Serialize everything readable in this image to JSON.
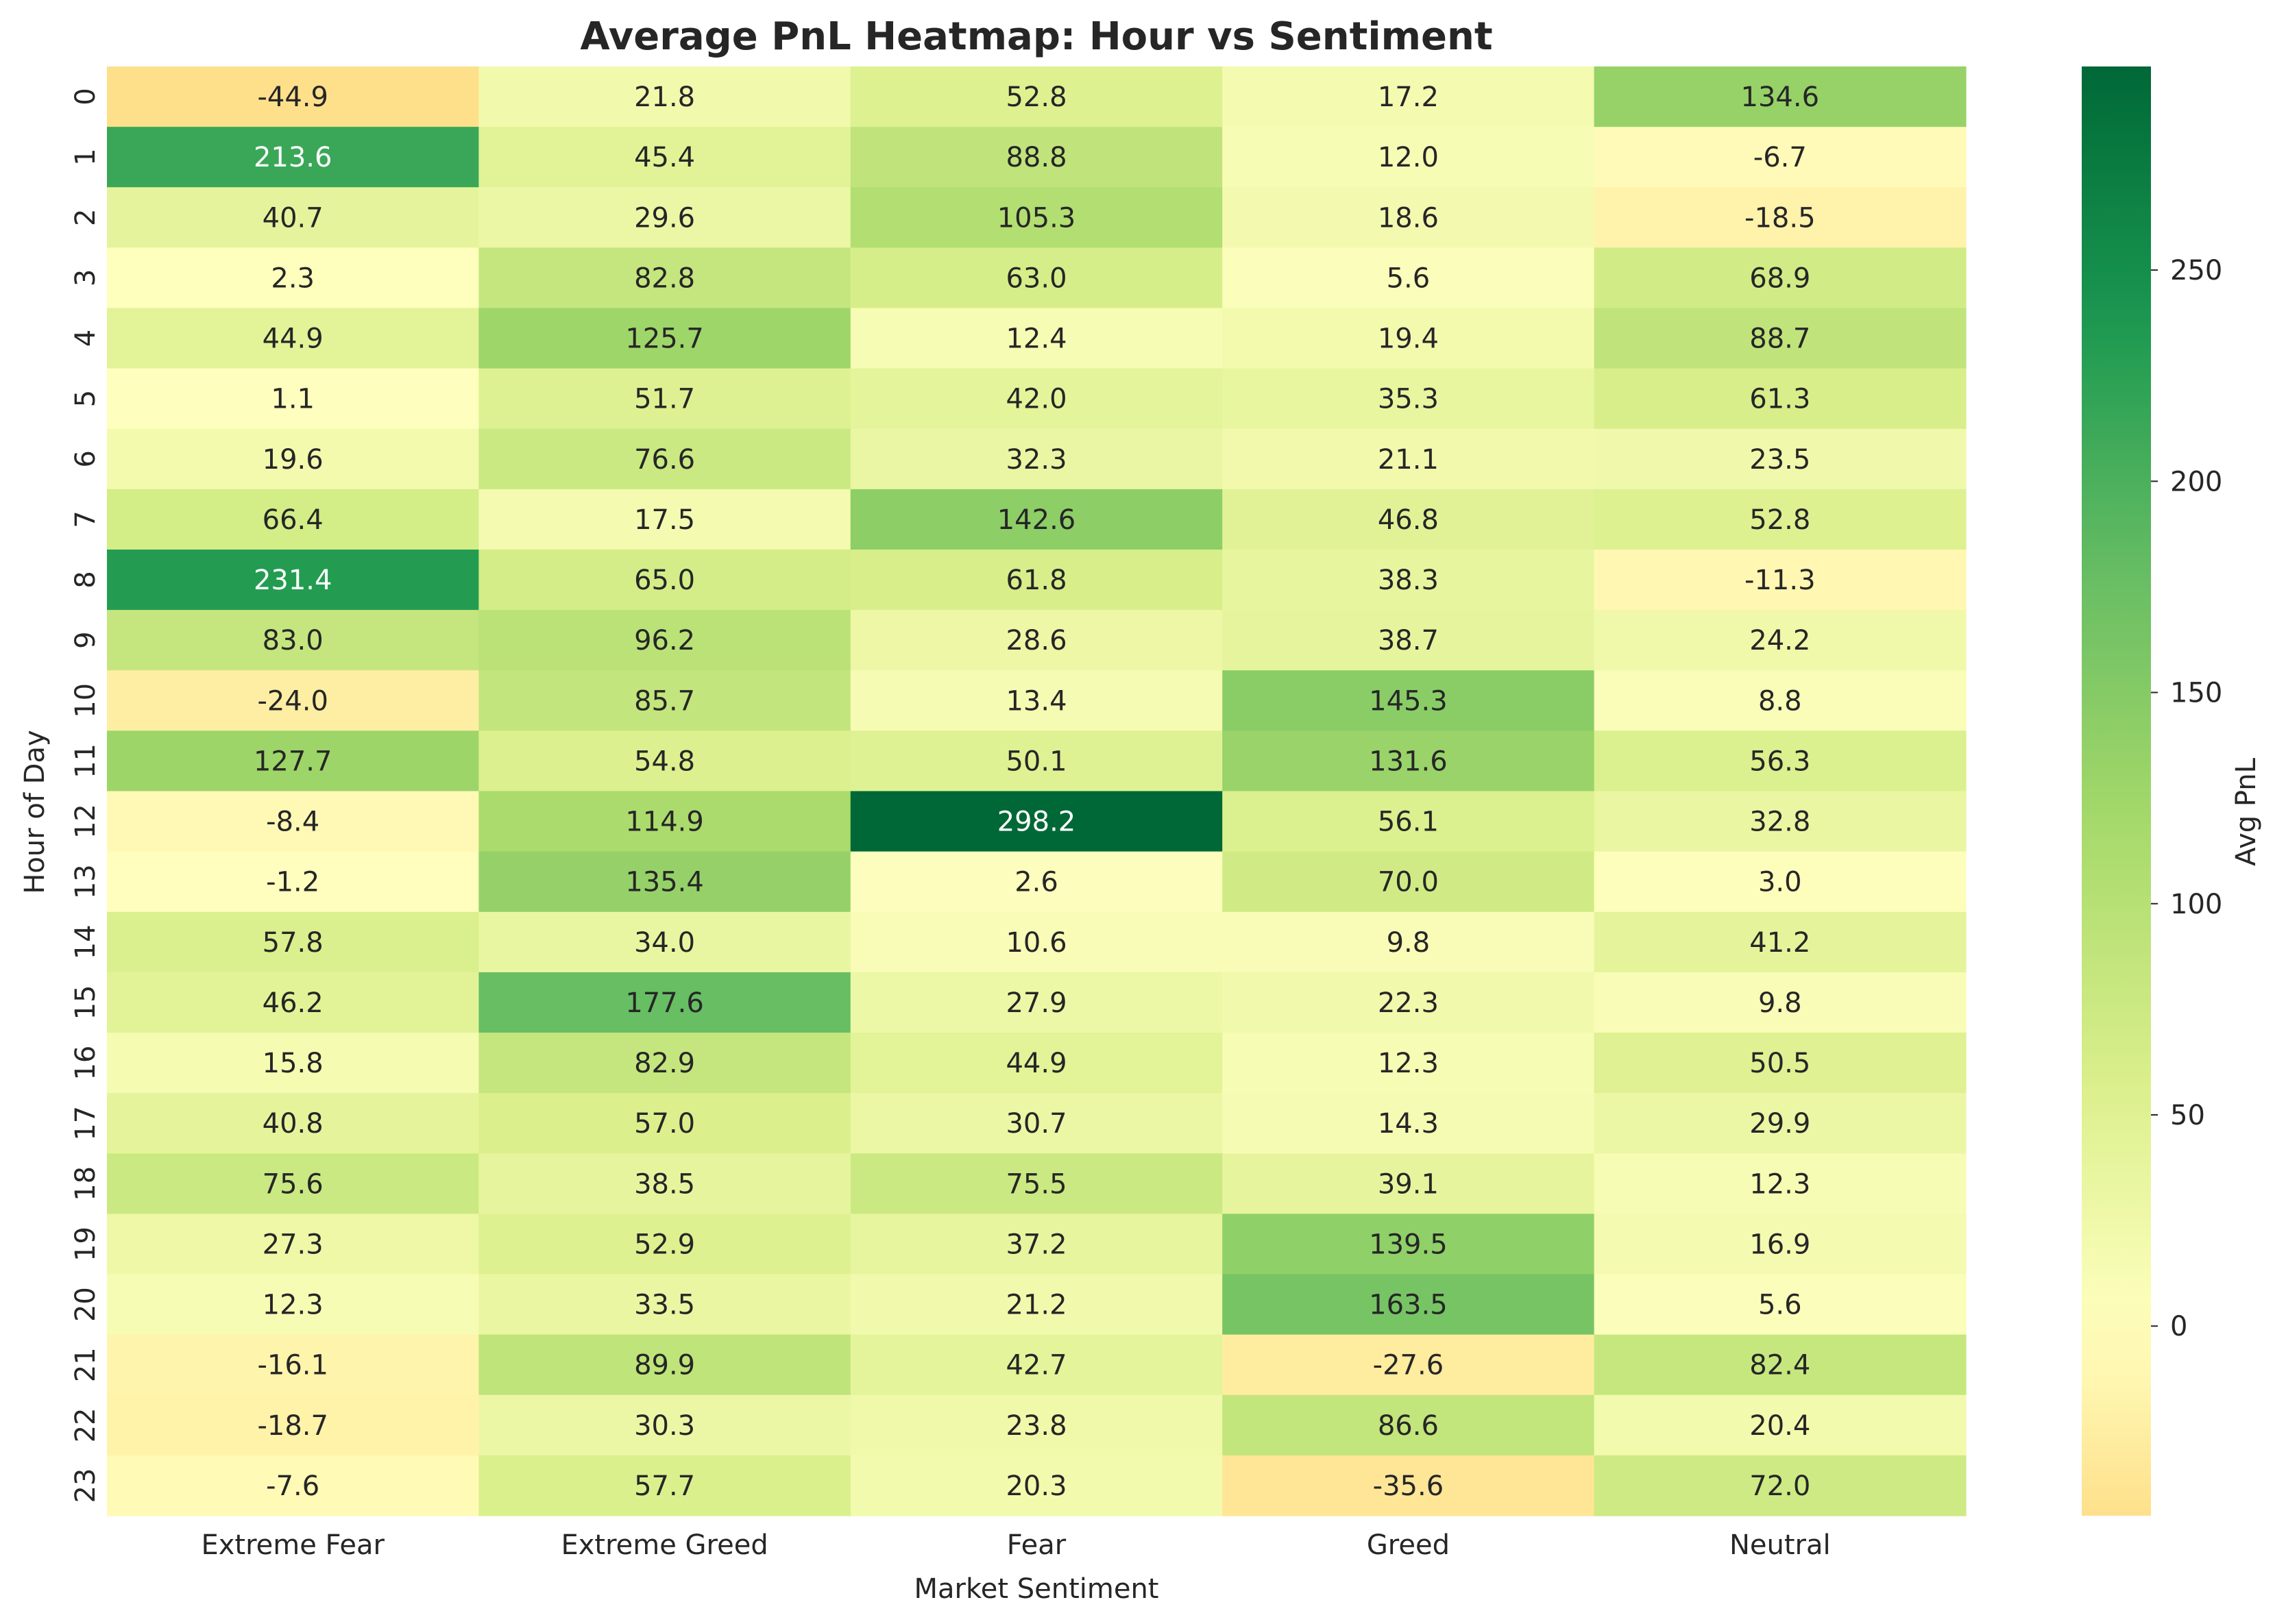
{
  "chart_data": {
    "type": "heatmap",
    "title": "Average PnL Heatmap: Hour vs Sentiment",
    "xlabel": "Market Sentiment",
    "ylabel": "Hour of Day",
    "colorbar_label": "Avg PnL",
    "colormap": "RdYlGn (centered at 0)",
    "x_categories": [
      "Extreme Fear",
      "Extreme Greed",
      "Fear",
      "Greed",
      "Neutral"
    ],
    "y_categories": [
      "0",
      "1",
      "2",
      "3",
      "4",
      "5",
      "6",
      "7",
      "8",
      "9",
      "10",
      "11",
      "12",
      "13",
      "14",
      "15",
      "16",
      "17",
      "18",
      "19",
      "20",
      "21",
      "22",
      "23"
    ],
    "values": [
      [
        -44.9,
        21.8,
        52.8,
        17.2,
        134.6
      ],
      [
        213.6,
        45.4,
        88.8,
        12.0,
        -6.7
      ],
      [
        40.7,
        29.6,
        105.3,
        18.6,
        -18.5
      ],
      [
        2.3,
        82.8,
        63.0,
        5.6,
        68.9
      ],
      [
        44.9,
        125.7,
        12.4,
        19.4,
        88.7
      ],
      [
        1.1,
        51.7,
        42.0,
        35.3,
        61.3
      ],
      [
        19.6,
        76.6,
        32.3,
        21.1,
        23.5
      ],
      [
        66.4,
        17.5,
        142.6,
        46.8,
        52.8
      ],
      [
        231.4,
        65.0,
        61.8,
        38.3,
        -11.3
      ],
      [
        83.0,
        96.2,
        28.6,
        38.7,
        24.2
      ],
      [
        -24.0,
        85.7,
        13.4,
        145.3,
        8.8
      ],
      [
        127.7,
        54.8,
        50.1,
        131.6,
        56.3
      ],
      [
        -8.4,
        114.9,
        298.2,
        56.1,
        32.8
      ],
      [
        -1.2,
        135.4,
        2.6,
        70.0,
        3.0
      ],
      [
        57.8,
        34.0,
        10.6,
        9.8,
        41.2
      ],
      [
        46.2,
        177.6,
        27.9,
        22.3,
        9.8
      ],
      [
        15.8,
        82.9,
        44.9,
        12.3,
        50.5
      ],
      [
        40.8,
        57.0,
        30.7,
        14.3,
        29.9
      ],
      [
        75.6,
        38.5,
        75.5,
        39.1,
        12.3
      ],
      [
        27.3,
        52.9,
        37.2,
        139.5,
        16.9
      ],
      [
        12.3,
        33.5,
        21.2,
        163.5,
        5.6
      ],
      [
        -16.1,
        89.9,
        42.7,
        -27.6,
        82.4
      ],
      [
        -18.7,
        30.3,
        23.8,
        86.6,
        20.4
      ],
      [
        -7.6,
        57.7,
        20.3,
        -35.6,
        72.0
      ]
    ],
    "colorbar_range": [
      -44.9,
      298.2
    ],
    "colorbar_ticks": [
      0,
      50,
      100,
      150,
      200,
      250
    ]
  }
}
